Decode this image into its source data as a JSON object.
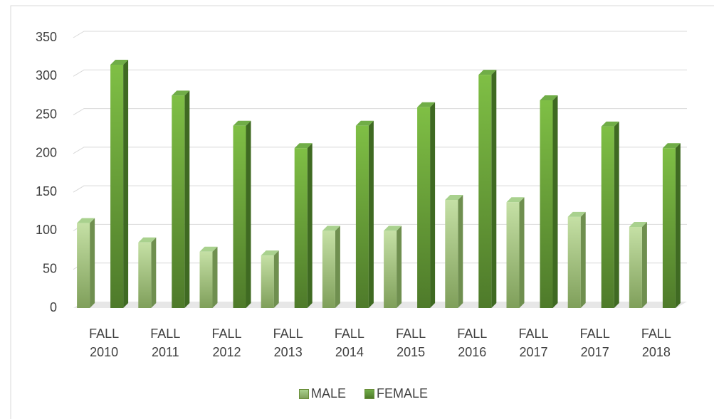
{
  "chart_data": {
    "type": "bar3d",
    "categories": [
      "FALL 2010",
      "FALL 2011",
      "FALL 2012",
      "FALL 2013",
      "FALL 2014",
      "FALL 2015",
      "FALL 2016",
      "FALL 2017",
      "FALL 2017",
      "FALL 2018"
    ],
    "series": [
      {
        "name": "MALE",
        "color": "#a9d18e",
        "values": [
          110,
          85,
          73,
          68,
          100,
          100,
          140,
          137,
          118,
          105
        ]
      },
      {
        "name": "FEMALE",
        "color": "#70ad47",
        "values": [
          315,
          275,
          236,
          207,
          236,
          260,
          302,
          269,
          235,
          207
        ]
      }
    ],
    "ylim": [
      0,
      350
    ],
    "yticks": [
      0,
      50,
      100,
      150,
      200,
      250,
      300,
      350
    ],
    "grid": true,
    "legend": "bottom"
  }
}
